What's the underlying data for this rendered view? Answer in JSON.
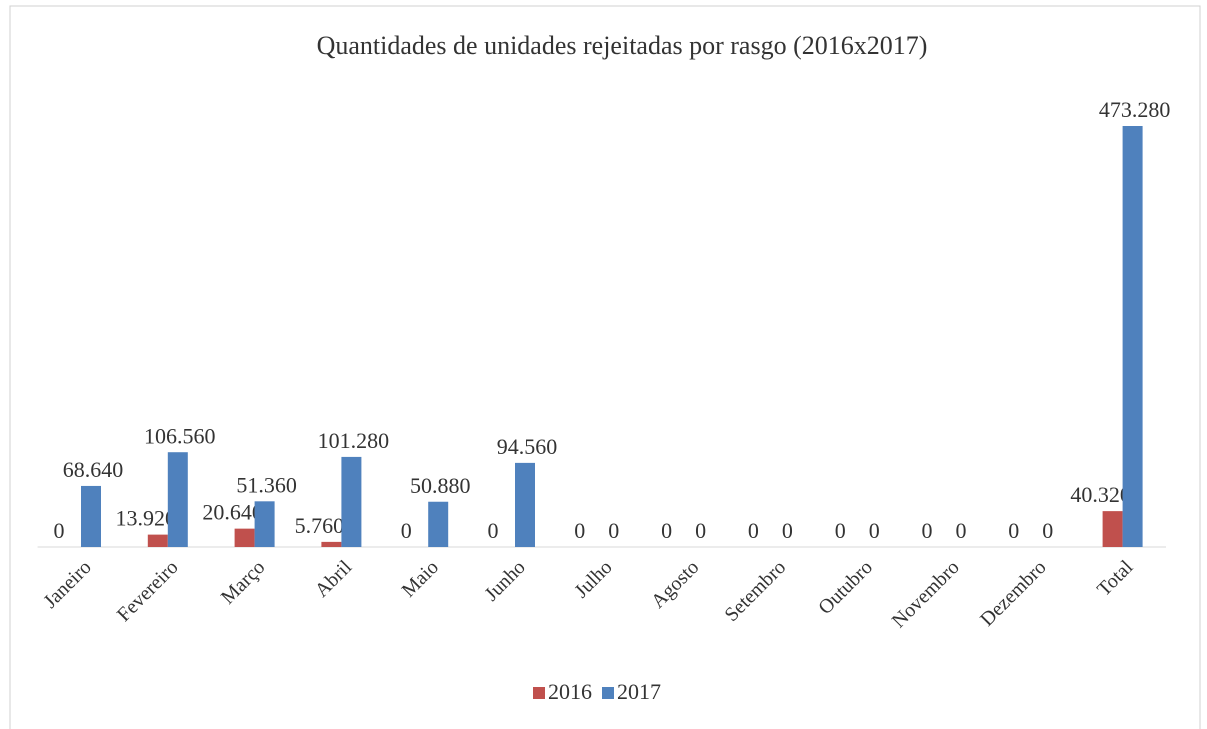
{
  "chart_data": {
    "type": "bar",
    "title": "Quantidades de unidades rejeitadas por rasgo (2016x2017)",
    "categories": [
      "Janeiro",
      "Fevereiro",
      "Março",
      "Abril",
      "Maio",
      "Junho",
      "Julho",
      "Agosto",
      "Setembro",
      "Outubro",
      "Novembro",
      "Dezembro",
      "Total"
    ],
    "series": [
      {
        "name": "2016",
        "color": "#c0504d",
        "values": [
          0,
          13920,
          20640,
          5760,
          0,
          0,
          0,
          0,
          0,
          0,
          0,
          0,
          40320
        ],
        "value_labels": [
          "0",
          "13.920",
          "20.640",
          "5.760",
          "0",
          "0",
          "0",
          "0",
          "0",
          "0",
          "0",
          "0",
          "40.320"
        ]
      },
      {
        "name": "2017",
        "color": "#4f81bd",
        "values": [
          68640,
          106560,
          51360,
          101280,
          50880,
          94560,
          0,
          0,
          0,
          0,
          0,
          0,
          473280
        ],
        "value_labels": [
          "68.640",
          "106.560",
          "51.360",
          "101.280",
          "50.880",
          "94.560",
          "0",
          "0",
          "0",
          "0",
          "0",
          "0",
          "473.280"
        ]
      }
    ],
    "legend": "bottom"
  }
}
